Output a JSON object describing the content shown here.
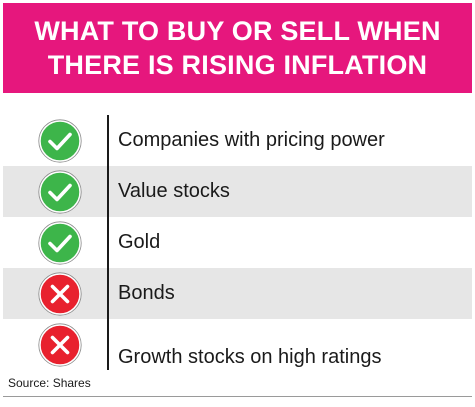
{
  "header": {
    "title_line_1": "WHAT TO BUY OR SELL WHEN",
    "title_line_2": "THERE IS RISING INFLATION",
    "background_color": "#e6177d"
  },
  "rows": [
    {
      "label": "Companies with pricing power",
      "verdict": "buy",
      "icon": "check-circle-icon"
    },
    {
      "label": "Value stocks",
      "verdict": "buy",
      "icon": "check-circle-icon"
    },
    {
      "label": "Gold",
      "verdict": "buy",
      "icon": "check-circle-icon"
    },
    {
      "label": "Bonds",
      "verdict": "sell",
      "icon": "cross-circle-icon"
    },
    {
      "label": "Growth stocks on high ratings",
      "verdict": "sell",
      "icon": "cross-circle-icon"
    }
  ],
  "colors": {
    "buy": "#3db54a",
    "sell": "#e8212e",
    "row_shade": "#e6e6e6"
  },
  "source": "Source: Shares"
}
